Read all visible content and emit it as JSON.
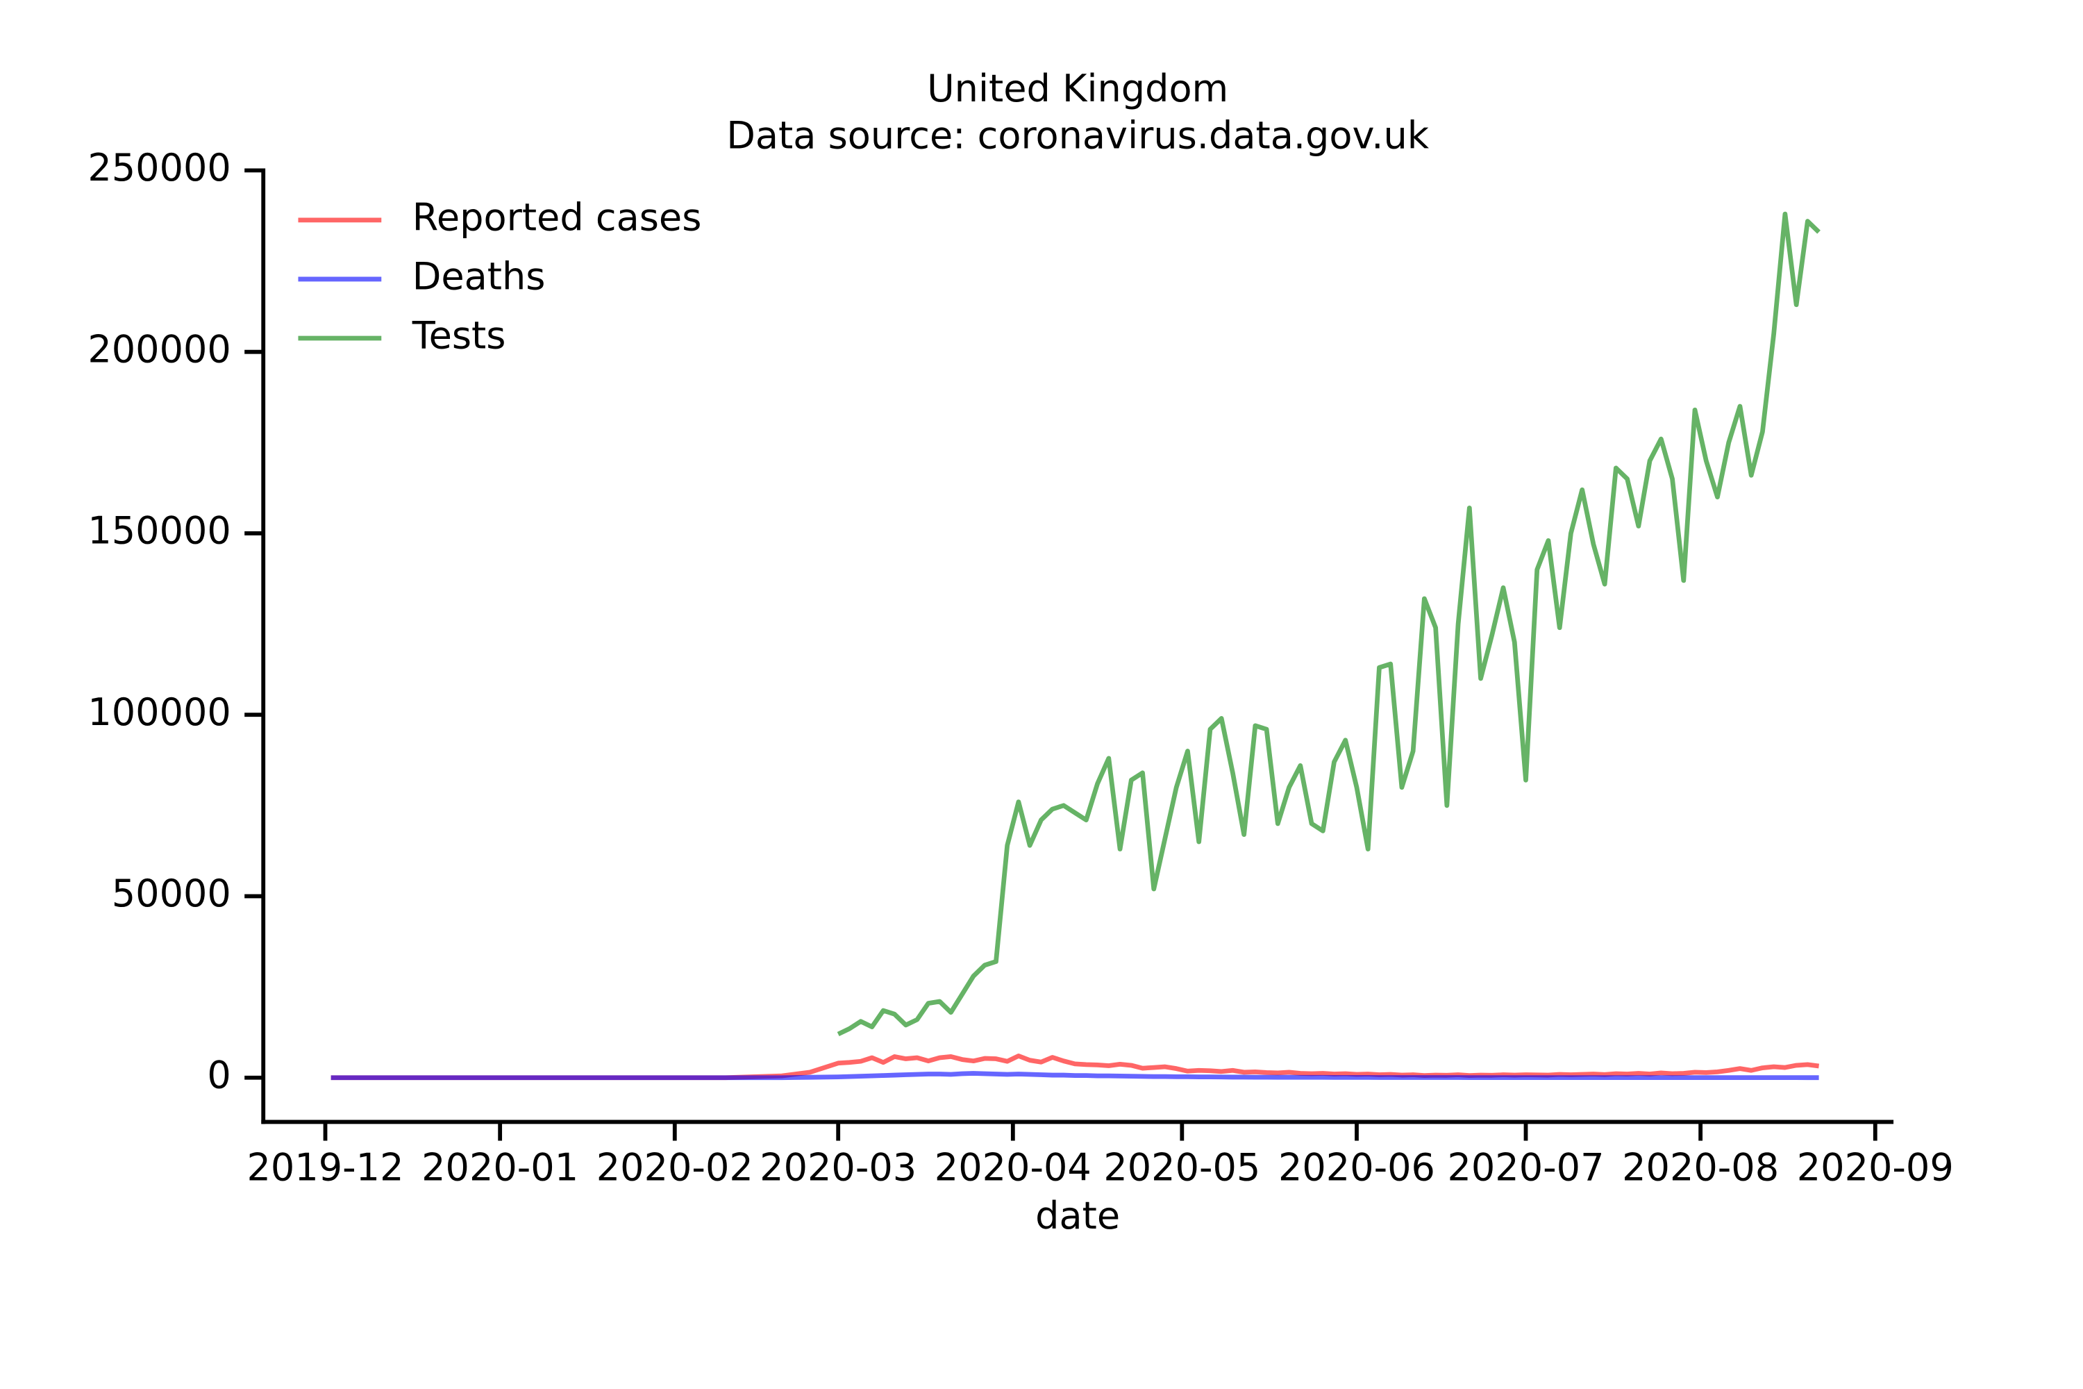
{
  "chart_data": {
    "type": "line",
    "title": "United Kingdom",
    "subtitle": "Data source: coronavirus.data.gov.uk",
    "x_label": "date",
    "x": [
      18232,
      18242,
      18252,
      18262,
      18272,
      18282,
      18292,
      18302,
      18312,
      18317,
      18322,
      18324,
      18326,
      18328,
      18330,
      18332,
      18334,
      18336,
      18338,
      18340,
      18342,
      18344,
      18346,
      18348,
      18350,
      18352,
      18354,
      18356,
      18358,
      18360,
      18362,
      18364,
      18366,
      18368,
      18370,
      18372,
      18374,
      18376,
      18378,
      18380,
      18382,
      18384,
      18386,
      18388,
      18390,
      18392,
      18394,
      18396,
      18398,
      18400,
      18402,
      18404,
      18406,
      18408,
      18410,
      18412,
      18414,
      18416,
      18418,
      18420,
      18422,
      18424,
      18426,
      18428,
      18430,
      18432,
      18434,
      18436,
      18438,
      18440,
      18442,
      18444,
      18446,
      18448,
      18450,
      18452,
      18454,
      18456,
      18458,
      18460,
      18462,
      18464,
      18466,
      18468,
      18470,
      18472,
      18474,
      18476,
      18478,
      18480,
      18482,
      18484,
      18486,
      18488,
      18490,
      18492,
      18494,
      18496
    ],
    "series": [
      {
        "name": "Reported cases",
        "color": "#ff0000",
        "values": [
          0,
          0,
          0,
          0,
          0,
          0,
          0,
          0,
          500,
          1500,
          4000,
          4200,
          4500,
          5500,
          4200,
          5800,
          5200,
          5500,
          4600,
          5500,
          5800,
          5000,
          4600,
          5300,
          5200,
          4500,
          6000,
          4800,
          4300,
          5600,
          4600,
          3800,
          3600,
          3500,
          3300,
          3700,
          3400,
          2600,
          2800,
          3000,
          2500,
          1800,
          2000,
          1900,
          1700,
          2000,
          1500,
          1600,
          1400,
          1300,
          1500,
          1200,
          1100,
          1200,
          1000,
          1100,
          900,
          1000,
          800,
          900,
          700,
          800,
          600,
          700,
          650,
          800,
          600,
          700,
          650,
          800,
          700,
          800,
          750,
          700,
          900,
          800,
          900,
          1000,
          850,
          1100,
          1000,
          1200,
          1000,
          1300,
          1100,
          1200,
          1500,
          1400,
          1600,
          2000,
          2500,
          2000,
          2700,
          3000,
          2800,
          3400,
          3600,
          3200
        ]
      },
      {
        "name": "Deaths",
        "color": "#0000ff",
        "values": [
          0,
          0,
          0,
          0,
          0,
          0,
          0,
          0,
          0,
          100,
          200,
          300,
          400,
          500,
          600,
          700,
          800,
          900,
          1000,
          1000,
          900,
          1100,
          1200,
          1100,
          1000,
          900,
          1000,
          900,
          800,
          700,
          700,
          600,
          600,
          500,
          500,
          450,
          400,
          350,
          300,
          300,
          250,
          250,
          200,
          200,
          180,
          150,
          150,
          120,
          120,
          100,
          100,
          90,
          80,
          80,
          70,
          70,
          60,
          60,
          50,
          50,
          40,
          40,
          30,
          30,
          30,
          30,
          25,
          25,
          20,
          20,
          20,
          20,
          15,
          15,
          15,
          12,
          12,
          10,
          10,
          10,
          10,
          10,
          10,
          8,
          8,
          8,
          8,
          8,
          8,
          7,
          7,
          7,
          6,
          6,
          6,
          6,
          5,
          5
        ]
      },
      {
        "name": "Tests",
        "color": "#008000",
        "values": [
          null,
          null,
          null,
          null,
          null,
          null,
          null,
          null,
          null,
          null,
          12000,
          13500,
          15500,
          14000,
          18500,
          17500,
          14500,
          16000,
          20500,
          21000,
          18000,
          23000,
          28000,
          31000,
          32000,
          64000,
          76000,
          64000,
          71000,
          74000,
          75000,
          73000,
          71000,
          81000,
          88000,
          63000,
          82000,
          84000,
          52000,
          66000,
          80000,
          90000,
          65000,
          96000,
          99000,
          84000,
          67000,
          97000,
          96000,
          70000,
          80000,
          86000,
          70000,
          68000,
          87000,
          93000,
          80000,
          63000,
          113000,
          114000,
          80000,
          90000,
          132000,
          124000,
          75000,
          125000,
          157000,
          110000,
          122000,
          135000,
          120000,
          82000,
          140000,
          148000,
          124000,
          150000,
          162000,
          147000,
          136000,
          168000,
          165000,
          152000,
          170000,
          176000,
          165000,
          137000,
          184000,
          170000,
          160000,
          175000,
          185000,
          166000,
          178000,
          205000,
          238000,
          213000,
          236000,
          233000
        ]
      }
    ],
    "alpha": 0.6,
    "xlim": [
      18220,
      18509
    ],
    "xticks": [
      {
        "value": 18231,
        "label": "2019-12"
      },
      {
        "value": 18262,
        "label": "2020-01"
      },
      {
        "value": 18293,
        "label": "2020-02"
      },
      {
        "value": 18322,
        "label": "2020-03"
      },
      {
        "value": 18353,
        "label": "2020-04"
      },
      {
        "value": 18383,
        "label": "2020-05"
      },
      {
        "value": 18414,
        "label": "2020-06"
      },
      {
        "value": 18444,
        "label": "2020-07"
      },
      {
        "value": 18475,
        "label": "2020-08"
      },
      {
        "value": 18506,
        "label": "2020-09"
      }
    ],
    "ylim": [
      -12200,
      250000
    ],
    "yticks": [
      0,
      50000,
      100000,
      150000,
      200000,
      250000
    ],
    "grid": false,
    "legend": "upper left"
  }
}
